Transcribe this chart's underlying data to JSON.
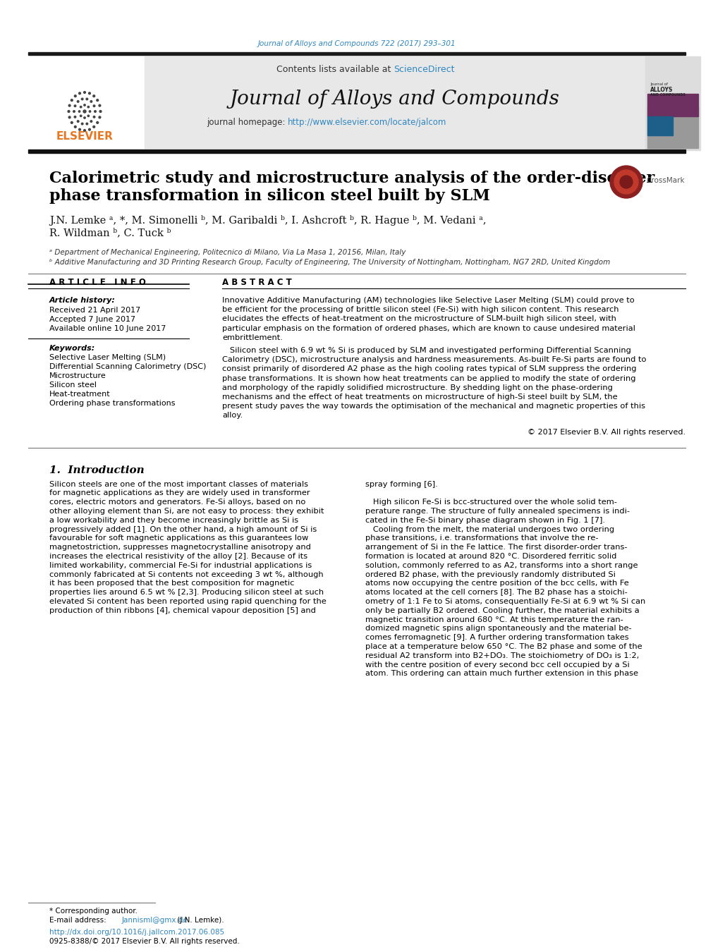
{
  "page_bg": "#ffffff",
  "top_citation": "Journal of Alloys and Compounds 722 (2017) 293–301",
  "top_citation_color": "#2e86c1",
  "header_bg": "#e8e8e8",
  "sciencedirect_color": "#2e86c1",
  "journal_name": "Journal of Alloys and Compounds",
  "journal_url": "http://www.elsevier.com/locate/jalcom",
  "journal_url_color": "#2e86c1",
  "black_bar_color": "#1a1a1a",
  "article_title_line1": "Calorimetric study and microstructure analysis of the order-disorder",
  "article_title_line2": "phase transformation in silicon steel built by SLM",
  "article_info_header": "A R T I C L E   I N F O",
  "abstract_header": "A B S T R A C T",
  "article_history_label": "Article history:",
  "received": "Received 21 April 2017",
  "accepted": "Accepted 7 June 2017",
  "available": "Available online 10 June 2017",
  "keywords_label": "Keywords:",
  "keywords": [
    "Selective Laser Melting (SLM)",
    "Differential Scanning Calorimetry (DSC)",
    "Microstructure",
    "Silicon steel",
    "Heat-treatment",
    "Ordering phase transformations"
  ],
  "abstract_lines1": [
    "Innovative Additive Manufacturing (AM) technologies like Selective Laser Melting (SLM) could prove to",
    "be efficient for the processing of brittle silicon steel (Fe-Si) with high silicon content. This research",
    "elucidates the effects of heat-treatment on the microstructure of SLM-built high silicon steel, with",
    "particular emphasis on the formation of ordered phases, which are known to cause undesired material",
    "embrittlement."
  ],
  "abstract_lines2": [
    "   Silicon steel with 6.9 wt % Si is produced by SLM and investigated performing Differential Scanning",
    "Calorimetry (DSC), microstructure analysis and hardness measurements. As-built Fe-Si parts are found to",
    "consist primarily of disordered A2 phase as the high cooling rates typical of SLM suppress the ordering",
    "phase transformations. It is shown how heat treatments can be applied to modify the state of ordering",
    "and morphology of the rapidly solidified microstructure. By shedding light on the phase-ordering",
    "mechanisms and the effect of heat treatments on microstructure of high-Si steel built by SLM, the",
    "present study paves the way towards the optimisation of the mechanical and magnetic properties of this",
    "alloy."
  ],
  "copyright": "© 2017 Elsevier B.V. All rights reserved.",
  "intro_col1_lines": [
    "Silicon steels are one of the most important classes of materials",
    "for magnetic applications as they are widely used in transformer",
    "cores, electric motors and generators. Fe-Si alloys, based on no",
    "other alloying element than Si, are not easy to process: they exhibit",
    "a low workability and they become increasingly brittle as Si is",
    "progressively added [1]. On the other hand, a high amount of Si is",
    "favourable for soft magnetic applications as this guarantees low",
    "magnetostriction, suppresses magnetocrystalline anisotropy and",
    "increases the electrical resistivity of the alloy [2]. Because of its",
    "limited workability, commercial Fe-Si for industrial applications is",
    "commonly fabricated at Si contents not exceeding 3 wt %, although",
    "it has been proposed that the best composition for magnetic",
    "properties lies around 6.5 wt % [2,3]. Producing silicon steel at such",
    "elevated Si content has been reported using rapid quenching for the",
    "production of thin ribbons [4], chemical vapour deposition [5] and"
  ],
  "intro_col2_lines": [
    "spray forming [6].",
    "",
    "   High silicon Fe-Si is bcc-structured over the whole solid tem-",
    "perature range. The structure of fully annealed specimens is indi-",
    "cated in the Fe-Si binary phase diagram shown in Fig. 1 [7].",
    "   Cooling from the melt, the material undergoes two ordering",
    "phase transitions, i.e. transformations that involve the re-",
    "arrangement of Si in the Fe lattice. The first disorder-order trans-",
    "formation is located at around 820 °C. Disordered ferritic solid",
    "solution, commonly referred to as A2, transforms into a short range",
    "ordered B2 phase, with the previously randomly distributed Si",
    "atoms now occupying the centre position of the bcc cells, with Fe",
    "atoms located at the cell corners [8]. The B2 phase has a stoichi-",
    "ometry of 1:1 Fe to Si atoms, consequentially Fe-Si at 6.9 wt % Si can",
    "only be partially B2 ordered. Cooling further, the material exhibits a",
    "magnetic transition around 680 °C. At this temperature the ran-",
    "domized magnetic spins align spontaneously and the material be-",
    "comes ferromagnetic [9]. A further ordering transformation takes",
    "place at a temperature below 650 °C. The B2 phase and some of the",
    "residual A2 transform into B2+DO₃. The stoichiometry of DO₃ is 1:2,",
    "with the centre position of every second bcc cell occupied by a Si",
    "atom. This ordering can attain much further extension in this phase"
  ],
  "footnote_star": "* Corresponding author.",
  "footnote_email_label": "E-mail address: ",
  "footnote_email": "Jannisml@gmx.de",
  "footnote_email_color": "#2e86c1",
  "footnote_email_suffix": " (J.N. Lemke).",
  "doi_line": "http://dx.doi.org/10.1016/j.jallcom.2017.06.085",
  "doi_color": "#2e86c1",
  "issn_line": "0925-8388/© 2017 Elsevier B.V. All rights reserved."
}
